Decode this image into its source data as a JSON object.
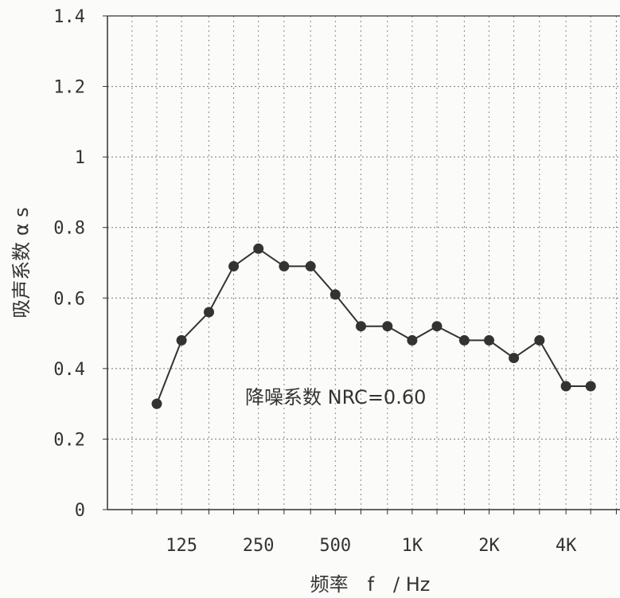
{
  "chart_data": {
    "type": "line",
    "title": "",
    "xlabel": "频率　f　/ Hz",
    "ylabel": "吸声系数 α s",
    "ylim": [
      0,
      1.4
    ],
    "y_ticks": [
      "0",
      "0.2",
      "0.4",
      "0.6",
      "0.8",
      "1",
      "1.2",
      "1.4"
    ],
    "x_scale": "log (1/3-octave bands)",
    "x_tick_labels": [
      {
        "value": 125,
        "label": "125"
      },
      {
        "value": 250,
        "label": "250"
      },
      {
        "value": 500,
        "label": "500"
      },
      {
        "value": 1000,
        "label": "1K"
      },
      {
        "value": 2000,
        "label": "2K"
      },
      {
        "value": 4000,
        "label": "4K"
      }
    ],
    "grid": true,
    "series": [
      {
        "x": [
          100,
          125,
          160,
          200,
          250,
          315,
          400,
          500,
          630,
          800,
          1000,
          1250,
          1600,
          2000,
          2500,
          3150,
          4000,
          5000
        ],
        "values": [
          0.3,
          0.48,
          0.56,
          0.69,
          0.74,
          0.69,
          0.69,
          0.61,
          0.52,
          0.52,
          0.48,
          0.52,
          0.48,
          0.48,
          0.43,
          0.48,
          0.35,
          0.35
        ]
      }
    ],
    "annotation": "降噪系数 NRC=0.60"
  }
}
